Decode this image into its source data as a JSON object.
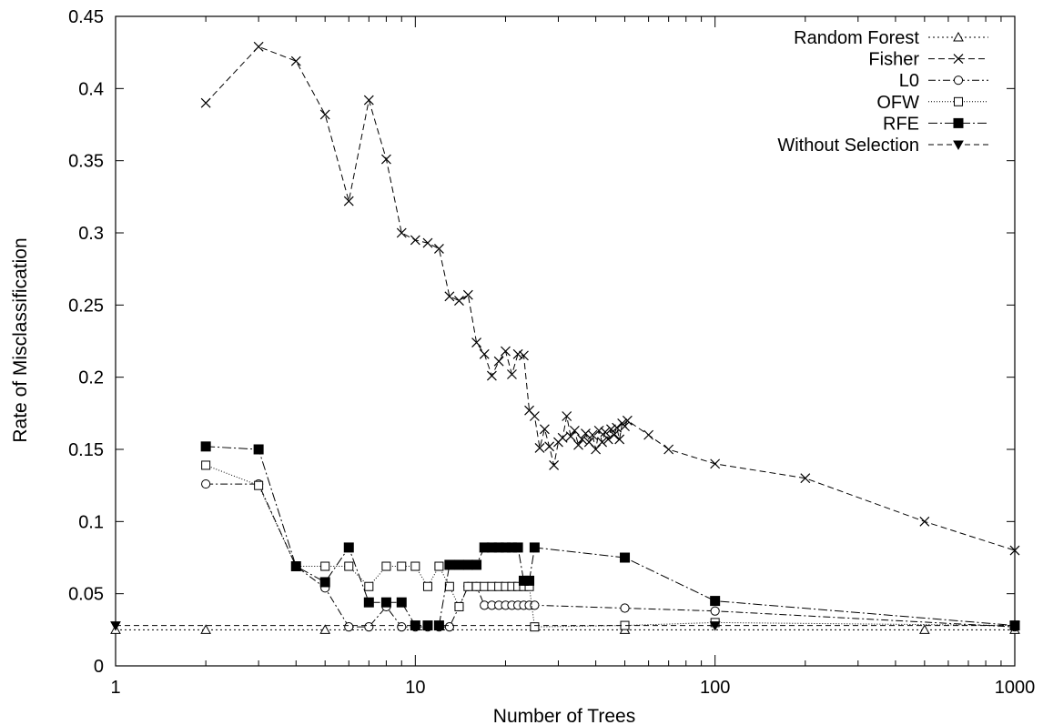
{
  "chart_data": {
    "type": "line",
    "xlabel": "Number of Trees",
    "ylabel": "Rate of Misclassification",
    "xscale": "log",
    "xlim": [
      1,
      1000
    ],
    "ylim": [
      0,
      0.45
    ],
    "xticks": [
      1,
      10,
      100,
      1000
    ],
    "xtick_labels": [
      "1",
      "10",
      "100",
      "1000"
    ],
    "yticks": [
      0,
      0.05,
      0.1,
      0.15,
      0.2,
      0.25,
      0.3,
      0.35,
      0.4,
      0.45
    ],
    "ytick_labels": [
      "0",
      "0.05",
      "0.1",
      "0.15",
      "0.2",
      "0.25",
      "0.3",
      "0.35",
      "0.4",
      "0.45"
    ],
    "grid": false,
    "legend_position": "top-right",
    "series": [
      {
        "name": "Random Forest",
        "marker": "triangle-open",
        "dash": "2,3",
        "points": [
          [
            1,
            0.025
          ],
          [
            2,
            0.025
          ],
          [
            5,
            0.025
          ],
          [
            50,
            0.025
          ],
          [
            500,
            0.025
          ],
          [
            1000,
            0.025
          ]
        ]
      },
      {
        "name": "Fisher",
        "marker": "cross",
        "dash": "7,4",
        "points": [
          [
            2,
            0.39
          ],
          [
            3,
            0.429
          ],
          [
            4,
            0.419
          ],
          [
            5,
            0.382
          ],
          [
            6,
            0.322
          ],
          [
            7,
            0.392
          ],
          [
            8,
            0.351
          ],
          [
            9,
            0.3
          ],
          [
            10,
            0.295
          ],
          [
            11,
            0.293
          ],
          [
            12,
            0.289
          ],
          [
            13,
            0.256
          ],
          [
            14,
            0.253
          ],
          [
            15,
            0.257
          ],
          [
            16,
            0.224
          ],
          [
            17,
            0.216
          ],
          [
            18,
            0.201
          ],
          [
            19,
            0.211
          ],
          [
            20,
            0.218
          ],
          [
            21,
            0.202
          ],
          [
            22,
            0.216
          ],
          [
            23,
            0.215
          ],
          [
            24,
            0.177
          ],
          [
            25,
            0.173
          ],
          [
            26,
            0.151
          ],
          [
            27,
            0.164
          ],
          [
            28,
            0.152
          ],
          [
            29,
            0.139
          ],
          [
            30,
            0.155
          ],
          [
            31,
            0.158
          ],
          [
            32,
            0.173
          ],
          [
            33,
            0.159
          ],
          [
            34,
            0.163
          ],
          [
            35,
            0.153
          ],
          [
            36,
            0.157
          ],
          [
            37,
            0.161
          ],
          [
            38,
            0.155
          ],
          [
            39,
            0.16
          ],
          [
            40,
            0.15
          ],
          [
            41,
            0.163
          ],
          [
            42,
            0.155
          ],
          [
            43,
            0.162
          ],
          [
            44,
            0.157
          ],
          [
            45,
            0.164
          ],
          [
            46,
            0.16
          ],
          [
            47,
            0.165
          ],
          [
            48,
            0.157
          ],
          [
            49,
            0.168
          ],
          [
            50,
            0.166
          ],
          [
            51,
            0.17
          ],
          [
            60,
            0.16
          ],
          [
            70,
            0.15
          ],
          [
            100,
            0.14
          ],
          [
            200,
            0.13
          ],
          [
            500,
            0.1
          ],
          [
            1000,
            0.08
          ]
        ]
      },
      {
        "name": "L0",
        "marker": "circle-open",
        "dash": "8,3,2,3",
        "points": [
          [
            2,
            0.126
          ],
          [
            3,
            0.126
          ],
          [
            4,
            0.069
          ],
          [
            5,
            0.054
          ],
          [
            6,
            0.027
          ],
          [
            7,
            0.027
          ],
          [
            8,
            0.041
          ],
          [
            9,
            0.027
          ],
          [
            10,
            0.027
          ],
          [
            11,
            0.027
          ],
          [
            12,
            0.027
          ],
          [
            13,
            0.027
          ],
          [
            14,
            0.041
          ],
          [
            15,
            0.055
          ],
          [
            16,
            0.055
          ],
          [
            17,
            0.042
          ],
          [
            18,
            0.042
          ],
          [
            19,
            0.042
          ],
          [
            20,
            0.042
          ],
          [
            21,
            0.042
          ],
          [
            22,
            0.042
          ],
          [
            23,
            0.042
          ],
          [
            24,
            0.042
          ],
          [
            25,
            0.042
          ],
          [
            50,
            0.04
          ],
          [
            100,
            0.038
          ],
          [
            1000,
            0.027
          ]
        ]
      },
      {
        "name": "OFW",
        "marker": "square-open",
        "dash": "1,2",
        "points": [
          [
            2,
            0.139
          ],
          [
            3,
            0.125
          ],
          [
            4,
            0.069
          ],
          [
            5,
            0.069
          ],
          [
            6,
            0.069
          ],
          [
            7,
            0.055
          ],
          [
            8,
            0.069
          ],
          [
            9,
            0.069
          ],
          [
            10,
            0.069
          ],
          [
            11,
            0.055
          ],
          [
            12,
            0.069
          ],
          [
            13,
            0.055
          ],
          [
            14,
            0.041
          ],
          [
            15,
            0.055
          ],
          [
            16,
            0.055
          ],
          [
            17,
            0.055
          ],
          [
            18,
            0.055
          ],
          [
            19,
            0.055
          ],
          [
            20,
            0.055
          ],
          [
            21,
            0.055
          ],
          [
            22,
            0.055
          ],
          [
            23,
            0.055
          ],
          [
            24,
            0.055
          ],
          [
            25,
            0.027
          ],
          [
            50,
            0.028
          ],
          [
            100,
            0.03
          ],
          [
            1000,
            0.028
          ]
        ]
      },
      {
        "name": "RFE",
        "marker": "square-filled",
        "dash": "10,3,2,3",
        "points": [
          [
            2,
            0.152
          ],
          [
            3,
            0.15
          ],
          [
            4,
            0.069
          ],
          [
            5,
            0.058
          ],
          [
            6,
            0.082
          ],
          [
            7,
            0.044
          ],
          [
            8,
            0.044
          ],
          [
            9,
            0.044
          ],
          [
            10,
            0.028
          ],
          [
            11,
            0.028
          ],
          [
            12,
            0.028
          ],
          [
            13,
            0.07
          ],
          [
            14,
            0.07
          ],
          [
            15,
            0.07
          ],
          [
            16,
            0.07
          ],
          [
            17,
            0.082
          ],
          [
            18,
            0.082
          ],
          [
            19,
            0.082
          ],
          [
            20,
            0.082
          ],
          [
            21,
            0.082
          ],
          [
            22,
            0.082
          ],
          [
            23,
            0.059
          ],
          [
            24,
            0.059
          ],
          [
            25,
            0.082
          ],
          [
            50,
            0.075
          ],
          [
            100,
            0.045
          ],
          [
            1000,
            0.028
          ]
        ]
      },
      {
        "name": "Without Selection",
        "marker": "triangle-down-filled",
        "dash": "6,4",
        "points": [
          [
            1,
            0.028
          ],
          [
            100,
            0.028
          ],
          [
            1000,
            0.028
          ]
        ]
      }
    ]
  }
}
